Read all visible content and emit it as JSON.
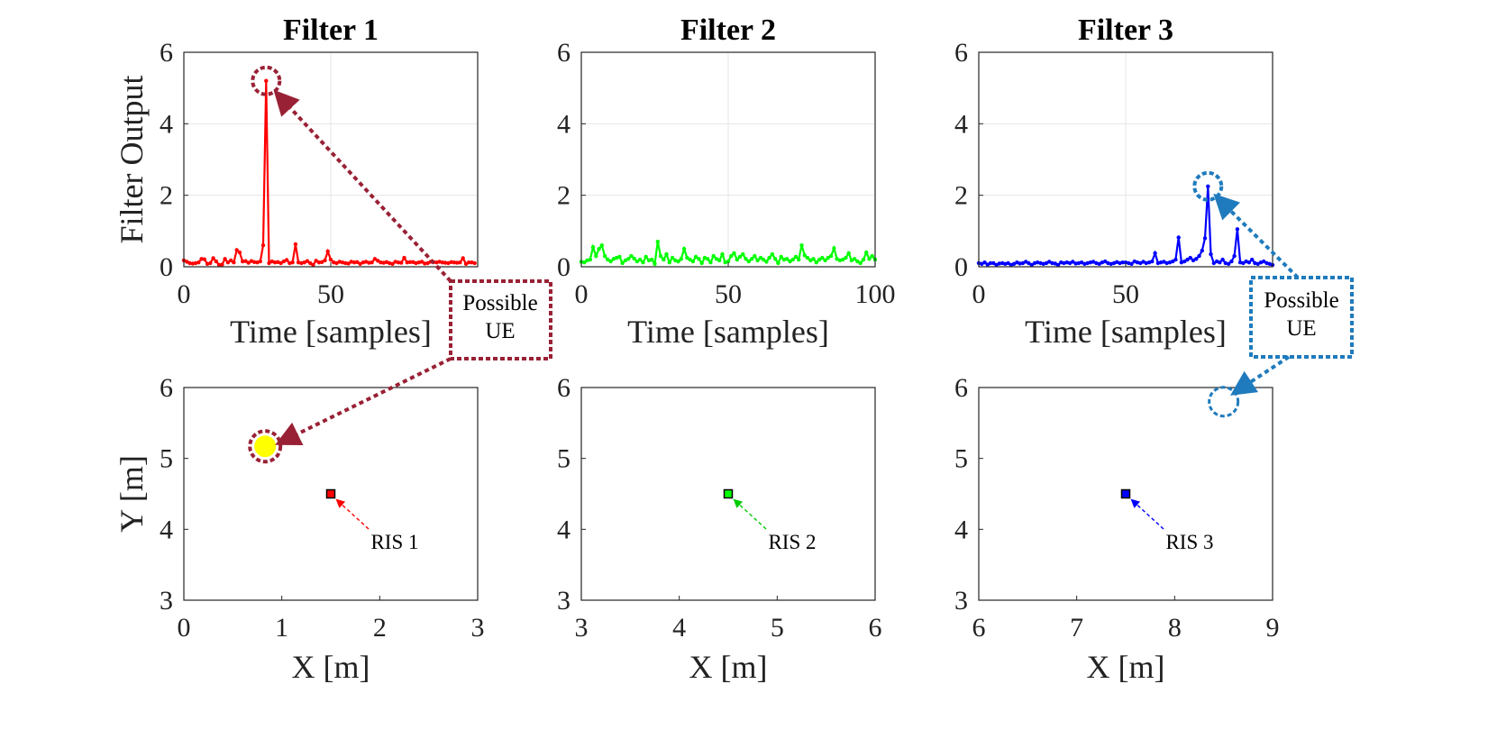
{
  "figure": {
    "width": 1661,
    "height": 830
  },
  "chart_data": [
    {
      "type": "line",
      "name": "filter-1",
      "title": "Filter 1",
      "xlabel": "Time [samples]",
      "ylabel": "Filter Output",
      "xlim": [
        0,
        100
      ],
      "ylim": [
        0,
        6
      ],
      "xticks": [
        0,
        50
      ],
      "yticks": [
        0,
        2,
        4,
        6
      ],
      "color": "#ff0000",
      "values": [
        0.18,
        0.14,
        0.1,
        0.09,
        0.1,
        0.12,
        0.22,
        0.21,
        0.08,
        0.1,
        0.24,
        0.15,
        0.05,
        0.06,
        0.22,
        0.12,
        0.18,
        0.12,
        0.47,
        0.4,
        0.15,
        0.16,
        0.11,
        0.16,
        0.13,
        0.12,
        0.15,
        0.6,
        5.2,
        0.1,
        0.15,
        0.12,
        0.13,
        0.1,
        0.15,
        0.19,
        0.1,
        0.12,
        0.63,
        0.12,
        0.1,
        0.12,
        0.16,
        0.1,
        0.05,
        0.17,
        0.12,
        0.13,
        0.18,
        0.43,
        0.2,
        0.12,
        0.1,
        0.14,
        0.12,
        0.1,
        0.09,
        0.14,
        0.12,
        0.13,
        0.08,
        0.12,
        0.14,
        0.11,
        0.12,
        0.22,
        0.17,
        0.12,
        0.11,
        0.13,
        0.1,
        0.08,
        0.14,
        0.12,
        0.11,
        0.25,
        0.12,
        0.13,
        0.13,
        0.1,
        0.12,
        0.14,
        0.09,
        0.1,
        0.14,
        0.13,
        0.12,
        0.14,
        0.12,
        0.11,
        0.1,
        0.13,
        0.12,
        0.11,
        0.12,
        0.24,
        0.08,
        0.12,
        0.12,
        0.1
      ],
      "annotation": {
        "text": [
          "Possible",
          "UE"
        ],
        "color": "#992135"
      }
    },
    {
      "type": "line",
      "name": "filter-2",
      "title": "Filter 2",
      "xlabel": "Time [samples]",
      "ylabel": "",
      "xlim": [
        0,
        100
      ],
      "ylim": [
        0,
        6
      ],
      "xticks": [
        0,
        50,
        100
      ],
      "yticks": [
        0,
        2,
        4,
        6
      ],
      "color": "#00ff00",
      "values": [
        0.14,
        0.12,
        0.18,
        0.2,
        0.55,
        0.3,
        0.5,
        0.6,
        0.3,
        0.2,
        0.15,
        0.22,
        0.25,
        0.28,
        0.1,
        0.18,
        0.22,
        0.3,
        0.23,
        0.15,
        0.2,
        0.12,
        0.28,
        0.18,
        0.2,
        0.08,
        0.7,
        0.3,
        0.2,
        0.35,
        0.12,
        0.25,
        0.18,
        0.15,
        0.22,
        0.5,
        0.25,
        0.2,
        0.15,
        0.28,
        0.22,
        0.1,
        0.25,
        0.22,
        0.12,
        0.3,
        0.22,
        0.18,
        0.35,
        0.12,
        0.15,
        0.3,
        0.38,
        0.2,
        0.28,
        0.35,
        0.22,
        0.15,
        0.22,
        0.3,
        0.18,
        0.25,
        0.2,
        0.14,
        0.25,
        0.35,
        0.22,
        0.1,
        0.28,
        0.2,
        0.22,
        0.15,
        0.2,
        0.28,
        0.2,
        0.6,
        0.32,
        0.25,
        0.18,
        0.22,
        0.12,
        0.2,
        0.25,
        0.18,
        0.25,
        0.3,
        0.52,
        0.22,
        0.18,
        0.2,
        0.25,
        0.38,
        0.18,
        0.22,
        0.15,
        0.1,
        0.2,
        0.4,
        0.22,
        0.3,
        0.2
      ],
      "annotation": null
    },
    {
      "type": "line",
      "name": "filter-3",
      "title": "Filter 3",
      "xlabel": "Time [samples]",
      "ylabel": "",
      "xlim": [
        0,
        100
      ],
      "ylim": [
        0,
        6
      ],
      "xticks": [
        0,
        50
      ],
      "yticks": [
        0,
        2,
        4,
        6
      ],
      "color": "#0000ff",
      "values": [
        0.1,
        0.08,
        0.12,
        0.06,
        0.1,
        0.1,
        0.05,
        0.09,
        0.1,
        0.08,
        0.1,
        0.05,
        0.08,
        0.12,
        0.09,
        0.1,
        0.14,
        0.1,
        0.05,
        0.1,
        0.12,
        0.1,
        0.08,
        0.1,
        0.14,
        0.1,
        0.09,
        0.05,
        0.12,
        0.1,
        0.12,
        0.1,
        0.14,
        0.09,
        0.1,
        0.12,
        0.08,
        0.1,
        0.12,
        0.14,
        0.1,
        0.08,
        0.12,
        0.15,
        0.1,
        0.08,
        0.1,
        0.13,
        0.1,
        0.12,
        0.12,
        0.1,
        0.08,
        0.15,
        0.12,
        0.1,
        0.14,
        0.1,
        0.12,
        0.15,
        0.38,
        0.1,
        0.12,
        0.14,
        0.1,
        0.12,
        0.15,
        0.2,
        0.82,
        0.12,
        0.15,
        0.2,
        0.25,
        0.18,
        0.22,
        0.3,
        0.45,
        0.8,
        2.25,
        0.35,
        0.1,
        0.15,
        0.12,
        0.2,
        0.1,
        0.08,
        0.15,
        0.3,
        1.05,
        0.12,
        0.1,
        0.15,
        0.12,
        0.2,
        0.1,
        0.08,
        0.12,
        0.15,
        0.1,
        0.08,
        0.05
      ],
      "annotation": {
        "text": [
          "Possible",
          "UE"
        ],
        "color": "#1f7bbd"
      }
    },
    {
      "type": "heatmap",
      "name": "map-1",
      "xlabel": "X [m]",
      "ylabel": "Y [m]",
      "xlim": [
        0,
        3
      ],
      "ylim": [
        3,
        6
      ],
      "xticks": [
        0,
        1,
        2,
        3
      ],
      "yticks": [
        3,
        4,
        5,
        6
      ],
      "nx": 9,
      "ny": 9,
      "grid": [
        [
          0.15,
          0.15,
          0.13,
          0.14,
          0.14,
          0.13,
          0.14,
          0.14,
          0.14
        ],
        [
          0.2,
          0.3,
          0.25,
          0.2,
          0.15,
          0.13,
          0.14,
          0.13,
          0.13
        ],
        [
          0.18,
          0.35,
          1.0,
          0.32,
          0.3,
          0.18,
          0.18,
          0.15,
          0.14
        ],
        [
          0.15,
          0.16,
          0.25,
          0.15,
          0.15,
          0.15,
          0.14,
          0.13,
          0.14
        ],
        [
          0.14,
          0.15,
          0.15,
          0.14,
          0.14,
          0.13,
          0.14,
          0.14,
          0.14
        ],
        [
          0.13,
          0.14,
          0.2,
          0.15,
          0.14,
          0.13,
          0.14,
          0.14,
          0.13
        ],
        [
          0.13,
          0.15,
          0.14,
          0.14,
          0.14,
          0.13,
          0.14,
          0.13,
          0.13
        ],
        [
          0.15,
          0.25,
          0.15,
          0.14,
          0.16,
          0.14,
          0.15,
          0.14,
          0.13
        ],
        [
          0.15,
          0.18,
          0.15,
          0.14,
          0.17,
          0.14,
          0.16,
          0.14,
          0.14
        ]
      ],
      "hotspot": {
        "x": 0.83,
        "y": 5.17
      },
      "ris": {
        "x": 1.5,
        "y": 4.5,
        "label": "RIS 1",
        "color": "#ff0000"
      }
    },
    {
      "type": "heatmap",
      "name": "map-2",
      "xlabel": "X [m]",
      "ylabel": "",
      "xlim": [
        3,
        6
      ],
      "ylim": [
        3,
        6
      ],
      "xticks": [
        3,
        4,
        5,
        6
      ],
      "yticks": [
        3,
        4,
        5,
        6
      ],
      "nx": 9,
      "ny": 9,
      "grid": [
        [
          0.14,
          0.13,
          0.14,
          0.13,
          0.14,
          0.13,
          0.14,
          0.13,
          0.14
        ],
        [
          0.3,
          0.15,
          0.14,
          0.14,
          0.14,
          0.15,
          0.14,
          0.13,
          0.15
        ],
        [
          0.2,
          0.15,
          0.15,
          0.14,
          0.15,
          0.16,
          0.14,
          0.14,
          0.15
        ],
        [
          0.22,
          0.15,
          0.14,
          0.13,
          0.14,
          0.18,
          0.15,
          0.16,
          0.15
        ],
        [
          0.3,
          0.32,
          0.35,
          0.28,
          0.2,
          0.15,
          0.18,
          0.28,
          0.25
        ],
        [
          0.17,
          0.16,
          0.15,
          0.14,
          0.15,
          0.15,
          0.14,
          0.15,
          0.14
        ],
        [
          0.16,
          0.2,
          0.15,
          0.14,
          0.16,
          0.14,
          0.15,
          0.15,
          0.14
        ],
        [
          0.14,
          0.15,
          0.14,
          0.15,
          0.14,
          0.15,
          0.14,
          0.13,
          0.14
        ],
        [
          0.15,
          0.16,
          0.15,
          0.16,
          0.15,
          0.14,
          0.15,
          0.14,
          0.15
        ]
      ],
      "hotspot": null,
      "ris": {
        "x": 4.5,
        "y": 4.5,
        "label": "RIS 2",
        "color": "#00ff00"
      }
    },
    {
      "type": "heatmap",
      "name": "map-3",
      "xlabel": "X [m]",
      "ylabel": "",
      "xlim": [
        6,
        9
      ],
      "ylim": [
        3,
        6
      ],
      "xticks": [
        6,
        7,
        8,
        9
      ],
      "yticks": [
        3,
        4,
        5,
        6
      ],
      "nx": 9,
      "ny": 9,
      "grid": [
        [
          0.14,
          0.13,
          0.14,
          0.13,
          0.14,
          0.15,
          0.3,
          0.48,
          0.2
        ],
        [
          0.13,
          0.14,
          0.13,
          0.14,
          0.13,
          0.14,
          0.15,
          0.18,
          0.16
        ],
        [
          0.14,
          0.13,
          0.14,
          0.13,
          0.14,
          0.13,
          0.14,
          0.15,
          0.15
        ],
        [
          0.13,
          0.14,
          0.13,
          0.14,
          0.13,
          0.14,
          0.13,
          0.14,
          0.14
        ],
        [
          0.14,
          0.13,
          0.14,
          0.13,
          0.14,
          0.13,
          0.14,
          0.13,
          0.14
        ],
        [
          0.13,
          0.14,
          0.13,
          0.14,
          0.13,
          0.14,
          0.13,
          0.14,
          0.13
        ],
        [
          0.14,
          0.13,
          0.14,
          0.13,
          0.14,
          0.13,
          0.14,
          0.13,
          0.14
        ],
        [
          0.13,
          0.14,
          0.13,
          0.14,
          0.13,
          0.14,
          0.13,
          0.14,
          0.13
        ],
        [
          0.14,
          0.13,
          0.14,
          0.13,
          0.14,
          0.13,
          0.14,
          0.13,
          0.14
        ]
      ],
      "hotspot": {
        "x": 8.5,
        "y": 5.8
      },
      "ris": {
        "x": 7.5,
        "y": 4.5,
        "label": "RIS 3",
        "color": "#0000ff"
      }
    }
  ]
}
